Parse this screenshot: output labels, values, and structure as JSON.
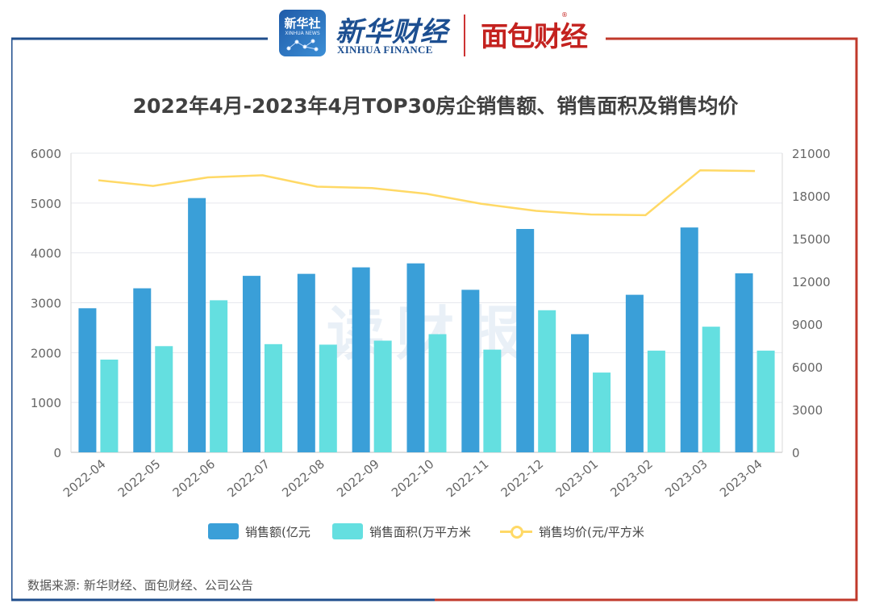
{
  "header": {
    "xinhua_badge_cn": "新华社",
    "xinhua_badge_en": "XINHUA NEWS",
    "xinhua_cn": "新华财经",
    "xinhua_en": "XINHUA FINANCE",
    "mianbao": "面包财经"
  },
  "watermark": "读财报",
  "colors": {
    "frame_left": "#1f4e8c",
    "frame_right": "#c0392b",
    "bar_sales": "#3a9fd8",
    "bar_area": "#64dfe0",
    "line_price": "#ffd966"
  },
  "chart_data": {
    "type": "bar",
    "title": "2022年4月-2023年4月TOP30房企销售额、销售面积及销售均价",
    "categories": [
      "2022-04",
      "2022-05",
      "2022-06",
      "2022-07",
      "2022-08",
      "2022-09",
      "2022-10",
      "2022-11",
      "2022-12",
      "2023-01",
      "2023-02",
      "2023-03",
      "2023-04"
    ],
    "series": [
      {
        "name": "销售额(亿元",
        "kind": "bar",
        "axis": "left",
        "values": [
          2890,
          3290,
          5100,
          3540,
          3580,
          3710,
          3790,
          3260,
          4480,
          2370,
          3160,
          4510,
          3590
        ]
      },
      {
        "name": "销售面积(万平方米",
        "kind": "bar",
        "axis": "left",
        "values": [
          1860,
          2130,
          3050,
          2170,
          2160,
          2240,
          2370,
          2060,
          2850,
          1600,
          2040,
          2520,
          2040
        ]
      },
      {
        "name": "销售均价(元/平方米",
        "kind": "line",
        "axis": "right",
        "values": [
          19100,
          18700,
          19300,
          19450,
          18650,
          18550,
          18150,
          17450,
          16950,
          16700,
          16650,
          19800,
          19750
        ]
      }
    ],
    "y_left": {
      "min": 0,
      "max": 6000,
      "ticks": [
        "0",
        "1000",
        "2000",
        "3000",
        "4000",
        "5000",
        "6000"
      ]
    },
    "y_right": {
      "min": 0,
      "max": 21000,
      "ticks": [
        "0",
        "3000",
        "6000",
        "9000",
        "12000",
        "15000",
        "18000",
        "21000"
      ]
    },
    "legend_position": "bottom"
  },
  "source": "数据来源: 新华财经、面包财经、公司公告"
}
